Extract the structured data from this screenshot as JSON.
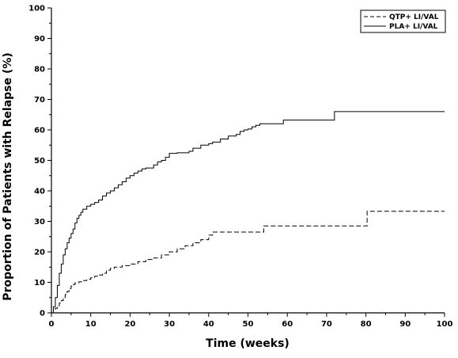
{
  "chart_data": {
    "type": "line",
    "title": "",
    "xlabel": "Time (weeks)",
    "ylabel": "Proportion of Patients with Relapse (%)",
    "xlim": [
      0,
      100
    ],
    "ylim": [
      0,
      100
    ],
    "x_ticks": [
      "0",
      "10",
      "20",
      "30",
      "40",
      "50",
      "60",
      "70",
      "80",
      "90",
      "100"
    ],
    "y_ticks": [
      "0",
      "10",
      "20",
      "30",
      "40",
      "50",
      "60",
      "70",
      "80",
      "90",
      "100"
    ],
    "grid": false,
    "legend": "top-right",
    "step": true,
    "series": [
      {
        "name": "QTP+ LI/VAL",
        "style": "dashed",
        "color": "#000000",
        "points": [
          [
            0,
            0
          ],
          [
            0.5,
            0.8
          ],
          [
            1,
            1.5
          ],
          [
            1.5,
            2.3
          ],
          [
            2,
            3.2
          ],
          [
            2.5,
            4
          ],
          [
            3,
            5
          ],
          [
            3.5,
            6
          ],
          [
            4,
            7
          ],
          [
            4.5,
            8
          ],
          [
            5,
            8.8
          ],
          [
            5.5,
            9.3
          ],
          [
            6,
            9.8
          ],
          [
            7,
            10.2
          ],
          [
            8,
            10.6
          ],
          [
            9,
            11
          ],
          [
            10,
            11.5
          ],
          [
            11,
            12
          ],
          [
            12,
            12.4
          ],
          [
            13,
            13
          ],
          [
            14,
            14
          ],
          [
            15,
            14.6
          ],
          [
            16,
            15
          ],
          [
            18,
            15.5
          ],
          [
            20,
            16
          ],
          [
            22,
            16.8
          ],
          [
            24,
            17.5
          ],
          [
            26,
            18
          ],
          [
            28,
            19
          ],
          [
            30,
            20
          ],
          [
            32,
            21
          ],
          [
            34,
            22
          ],
          [
            36,
            23
          ],
          [
            38,
            24
          ],
          [
            40,
            25.5
          ],
          [
            41,
            26.5
          ],
          [
            43,
            26.5
          ],
          [
            45,
            26.5
          ],
          [
            50,
            26.5
          ],
          [
            54,
            28.5
          ],
          [
            60,
            28.5
          ],
          [
            70,
            28.5
          ],
          [
            80,
            28.5
          ],
          [
            80.3,
            33.3
          ],
          [
            100,
            33.3
          ]
        ]
      },
      {
        "name": "PLA+ LI/VAL",
        "style": "solid",
        "color": "#000000",
        "points": [
          [
            0,
            0
          ],
          [
            0.5,
            2
          ],
          [
            1,
            5
          ],
          [
            1.5,
            9
          ],
          [
            2,
            13
          ],
          [
            2.5,
            16
          ],
          [
            3,
            19
          ],
          [
            3.5,
            21
          ],
          [
            4,
            23
          ],
          [
            4.5,
            24.5
          ],
          [
            5,
            26
          ],
          [
            5.5,
            27.5
          ],
          [
            6,
            29.5
          ],
          [
            6.5,
            31
          ],
          [
            7,
            32
          ],
          [
            7.5,
            33
          ],
          [
            8,
            34
          ],
          [
            9,
            35
          ],
          [
            10,
            35.6
          ],
          [
            11,
            36.2
          ],
          [
            12,
            37
          ],
          [
            13,
            38.3
          ],
          [
            14,
            39.3
          ],
          [
            15,
            40
          ],
          [
            16,
            41
          ],
          [
            17,
            42
          ],
          [
            18,
            43
          ],
          [
            19,
            44.2
          ],
          [
            20,
            45
          ],
          [
            21,
            45.8
          ],
          [
            22,
            46.5
          ],
          [
            23,
            47.2
          ],
          [
            24,
            47.5
          ],
          [
            25,
            47.5
          ],
          [
            26,
            48.5
          ],
          [
            27,
            49.5
          ],
          [
            28,
            50
          ],
          [
            29,
            51
          ],
          [
            30,
            52.3
          ],
          [
            32,
            52.5
          ],
          [
            34,
            52.5
          ],
          [
            35,
            53
          ],
          [
            36,
            54
          ],
          [
            37,
            54
          ],
          [
            38,
            55
          ],
          [
            39,
            55
          ],
          [
            40,
            55.5
          ],
          [
            41,
            56
          ],
          [
            42,
            56
          ],
          [
            43,
            57
          ],
          [
            44,
            57
          ],
          [
            45,
            58
          ],
          [
            46,
            58
          ],
          [
            47,
            58.5
          ],
          [
            48,
            59.5
          ],
          [
            49,
            60
          ],
          [
            50,
            60.3
          ],
          [
            51,
            61
          ],
          [
            52,
            61.5
          ],
          [
            53,
            62
          ],
          [
            55,
            62
          ],
          [
            58,
            62
          ],
          [
            59,
            63.2
          ],
          [
            62,
            63.2
          ],
          [
            65,
            63.2
          ],
          [
            70,
            63.2
          ],
          [
            72,
            66
          ],
          [
            80,
            66
          ],
          [
            90,
            66
          ],
          [
            100,
            66
          ]
        ]
      }
    ]
  }
}
